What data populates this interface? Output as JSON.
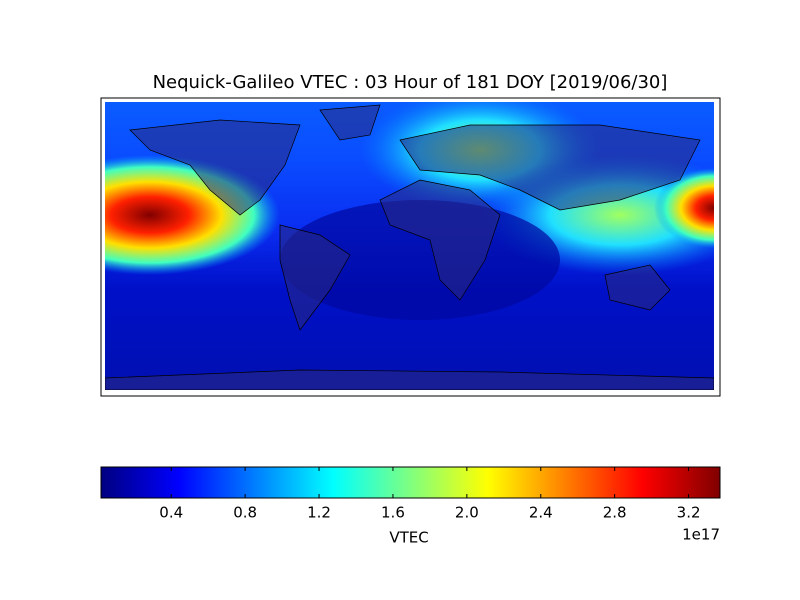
{
  "chart_data": {
    "type": "map-heatmap",
    "title": "Nequick-Galileo VTEC : 03 Hour of 181 DOY [2019/06/30]",
    "colormap": "jet",
    "colorbar": {
      "label": "VTEC",
      "offset_label": "1e17",
      "lim": [
        0.02,
        3.37
      ],
      "ticks": [
        0.4,
        0.8,
        1.2,
        1.6,
        {
          "value": 2,
          "label": "2.0"
        },
        2.4,
        2.8,
        3.2
      ]
    }
  }
}
